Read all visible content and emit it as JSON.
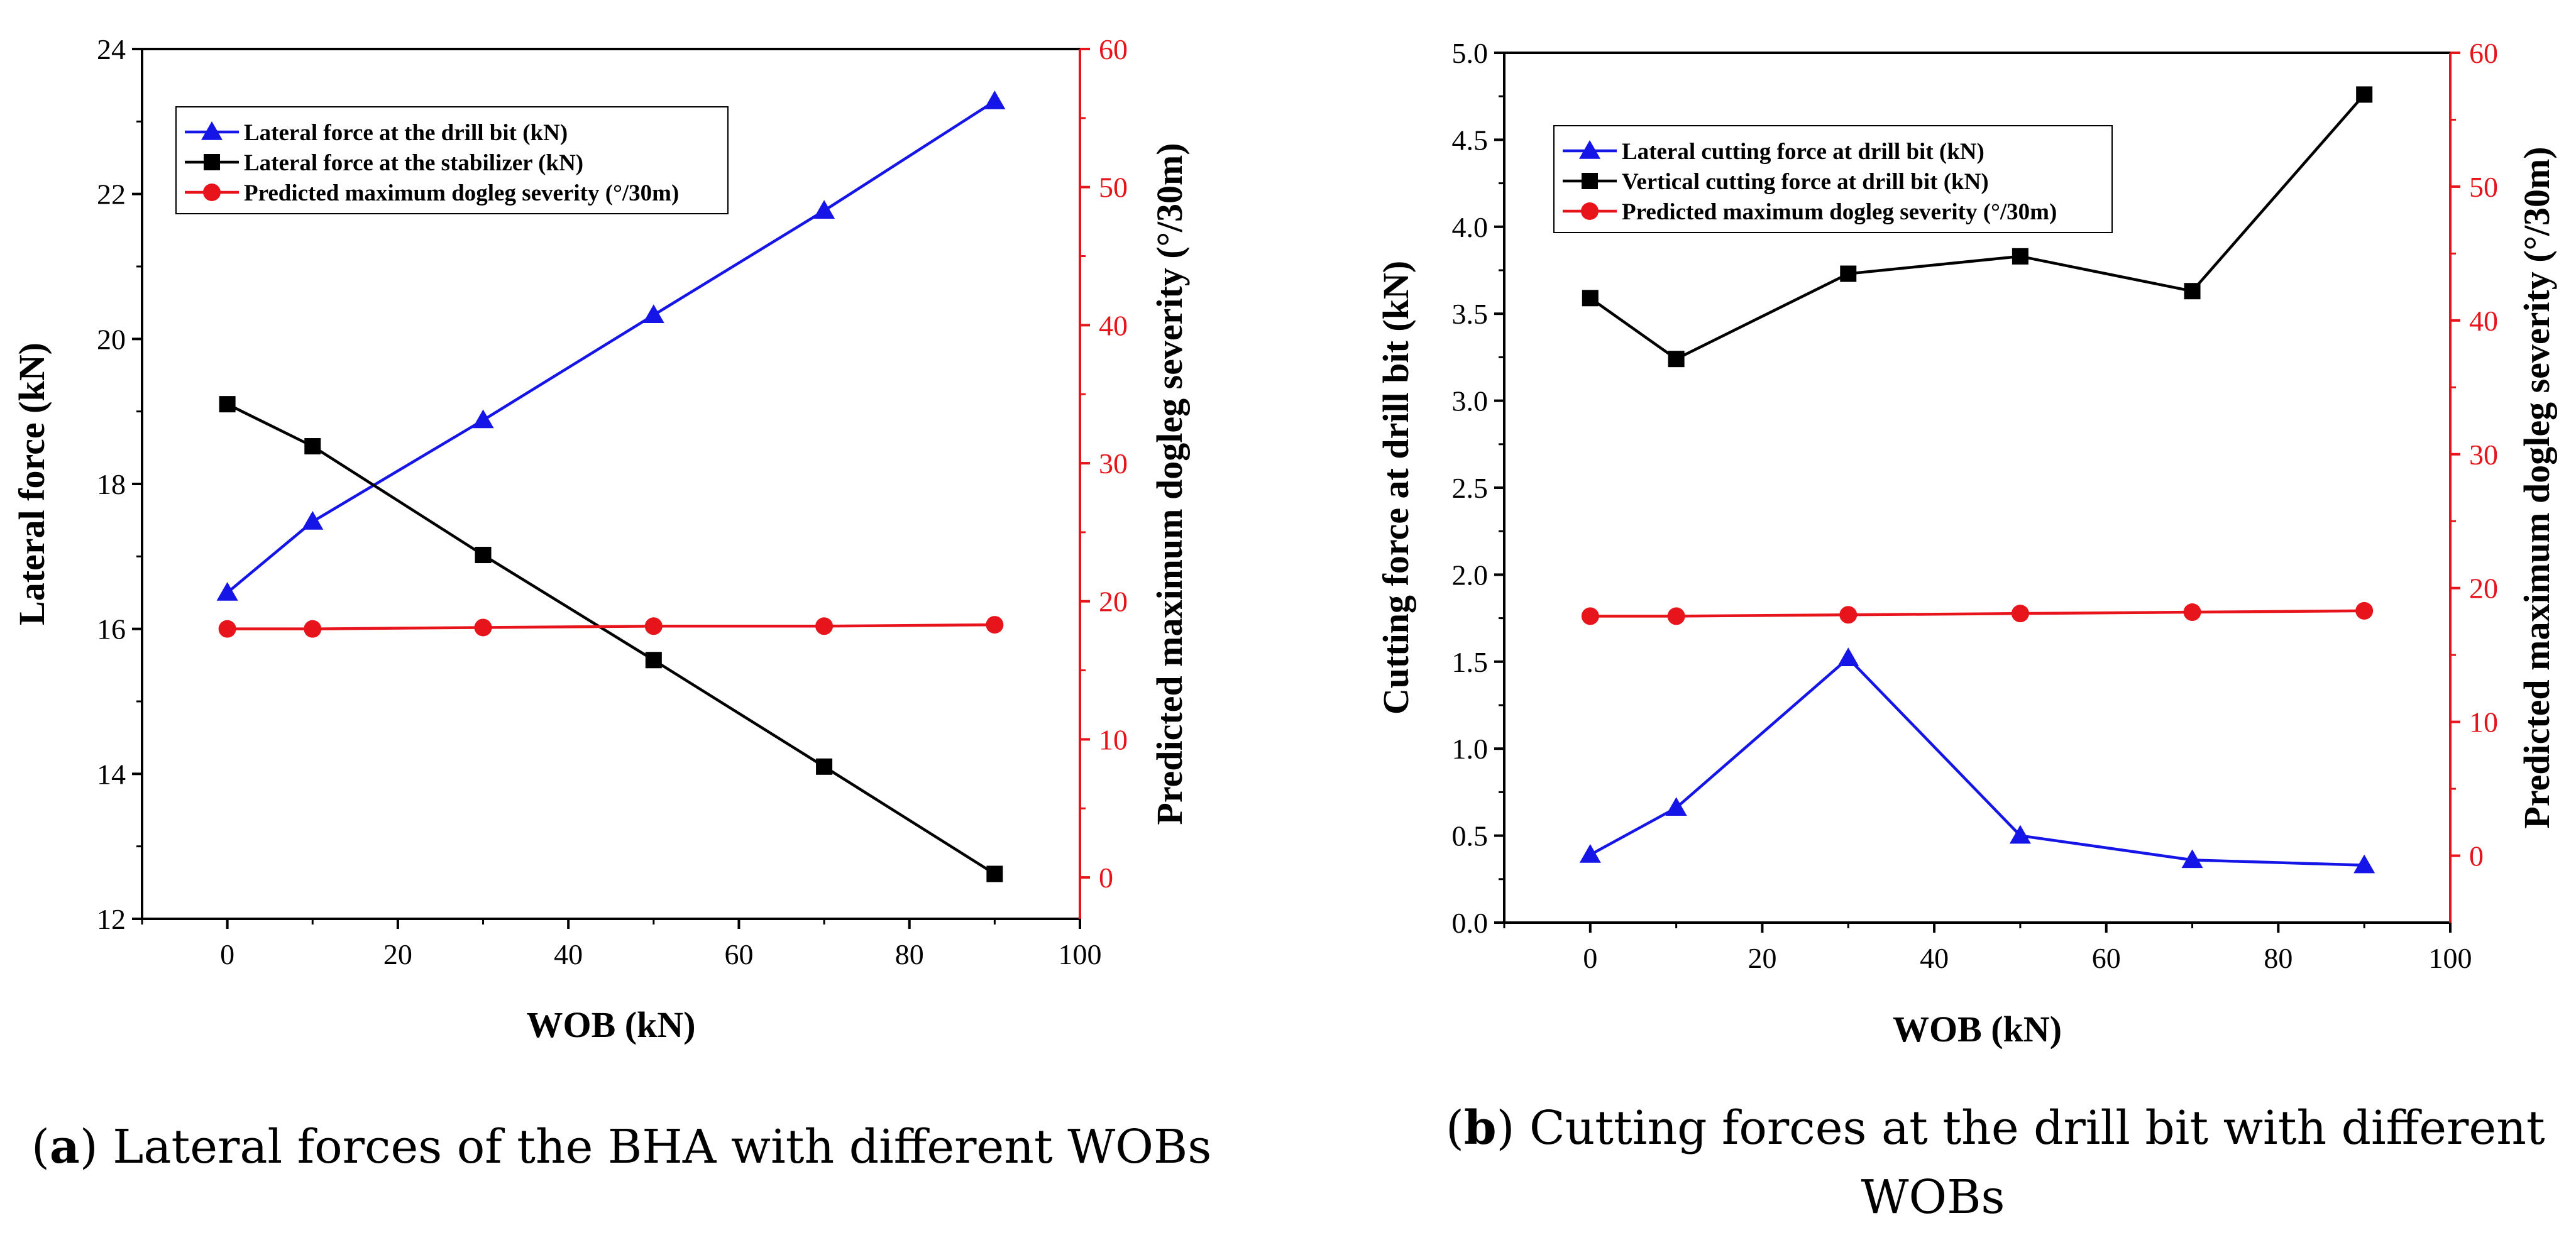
{
  "chart_data": [
    {
      "type": "line",
      "title": "",
      "xlabel": "WOB (kN)",
      "ylabel": "Lateral force (kN)",
      "y2label": "Predicted maximum dogleg severity (°/30m)",
      "xlim": [
        -10,
        100
      ],
      "ylim": [
        12,
        24
      ],
      "y2lim": [
        -3,
        60
      ],
      "xticks": [
        "0",
        "20",
        "40",
        "60",
        "80",
        "100"
      ],
      "yticks": [
        "12",
        "14",
        "16",
        "18",
        "20",
        "22",
        "24"
      ],
      "y2ticks": [
        "0",
        "10",
        "20",
        "30",
        "40",
        "50",
        "60"
      ],
      "legend_position": "top-left",
      "series": [
        {
          "name": "Lateral force at the drill bit (kN)",
          "axis": "left",
          "marker": "triangle",
          "color": "#1515e8",
          "x": [
            0,
            10,
            30,
            50,
            70,
            90
          ],
          "values": [
            16.5,
            17.48,
            18.88,
            20.33,
            21.77,
            23.28
          ]
        },
        {
          "name": "Lateral force at the stabilizer (kN)",
          "axis": "left",
          "marker": "square",
          "color": "#000000",
          "x": [
            0,
            10,
            30,
            50,
            70,
            90
          ],
          "values": [
            19.1,
            18.52,
            17.02,
            15.57,
            14.1,
            12.62
          ]
        },
        {
          "name": "Predicted maximum dogleg severity (°/30m)",
          "axis": "right",
          "marker": "circle",
          "color": "#e8141b",
          "x": [
            0,
            10,
            30,
            50,
            70,
            90
          ],
          "values": [
            18.0,
            18.0,
            18.1,
            18.2,
            18.2,
            18.3
          ]
        }
      ],
      "caption": {
        "label": "a",
        "text": ") Lateral forces of the BHA with different WOBs",
        "open": "("
      }
    },
    {
      "type": "line",
      "title": "",
      "xlabel": "WOB (kN)",
      "ylabel": "Cutting force at drill bit (kN)",
      "y2label": "Predicted maximum dogleg severity (°/30m)",
      "xlim": [
        -10,
        100
      ],
      "ylim": [
        0,
        5
      ],
      "y2lim": [
        -5,
        60
      ],
      "xticks": [
        "0",
        "20",
        "40",
        "60",
        "80",
        "100"
      ],
      "yticks": [
        "0.0",
        "0.5",
        "1.0",
        "1.5",
        "2.0",
        "2.5",
        "3.0",
        "3.5",
        "4.0",
        "4.5",
        "5.0"
      ],
      "y2ticks": [
        "0",
        "10",
        "20",
        "30",
        "40",
        "50",
        "60"
      ],
      "legend_position": "top-left",
      "series": [
        {
          "name": "Lateral cutting force at drill bit (kN)",
          "axis": "left",
          "marker": "triangle",
          "color": "#1515e8",
          "x": [
            0,
            10,
            30,
            50,
            70,
            90
          ],
          "values": [
            0.39,
            0.66,
            1.52,
            0.5,
            0.36,
            0.33
          ]
        },
        {
          "name": "Vertical cutting force at drill bit  (kN)",
          "axis": "left",
          "marker": "square",
          "color": "#000000",
          "x": [
            0,
            10,
            30,
            50,
            70,
            90
          ],
          "values": [
            3.59,
            3.24,
            3.73,
            3.83,
            3.63,
            4.76
          ]
        },
        {
          "name": "Predicted maximum dogleg severity (°/30m)",
          "axis": "right",
          "marker": "circle",
          "color": "#e8141b",
          "x": [
            0,
            10,
            30,
            50,
            70,
            90
          ],
          "values": [
            17.9,
            17.9,
            18.0,
            18.1,
            18.2,
            18.3
          ]
        }
      ],
      "caption": {
        "label": "b",
        "text": ") Cutting forces at the drill bit with different",
        "open": "(",
        "line2": "WOBs"
      }
    }
  ]
}
